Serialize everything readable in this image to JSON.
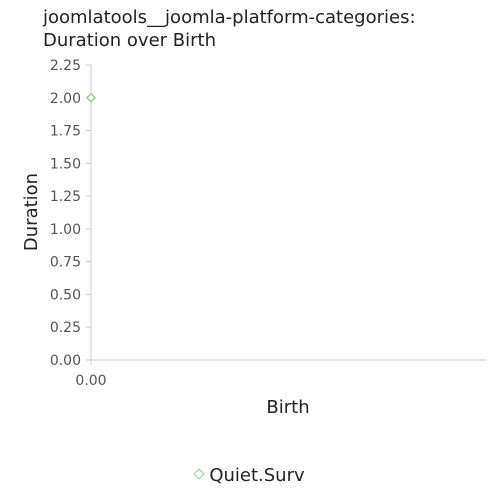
{
  "chart_data": {
    "type": "scatter",
    "title": "joomlatools__joomla-platform-categories: Duration over Birth",
    "title_lines": [
      "joomlatools__joomla-platform-categories:",
      "Duration over Birth"
    ],
    "xlabel": "Birth",
    "ylabel": "Duration",
    "xlim": [
      0,
      1
    ],
    "ylim": [
      0,
      2.25
    ],
    "x_ticks": [
      "0.00"
    ],
    "y_ticks": [
      "0.00",
      "0.25",
      "0.50",
      "0.75",
      "1.00",
      "1.25",
      "1.50",
      "1.75",
      "2.00",
      "2.25"
    ],
    "grid": false,
    "legend_position": "bottom",
    "series": [
      {
        "name": "Quiet.Surv",
        "color": "#8fd18f",
        "marker": "diamond",
        "points": [
          {
            "x": 0,
            "y": 2.0
          }
        ]
      }
    ]
  }
}
